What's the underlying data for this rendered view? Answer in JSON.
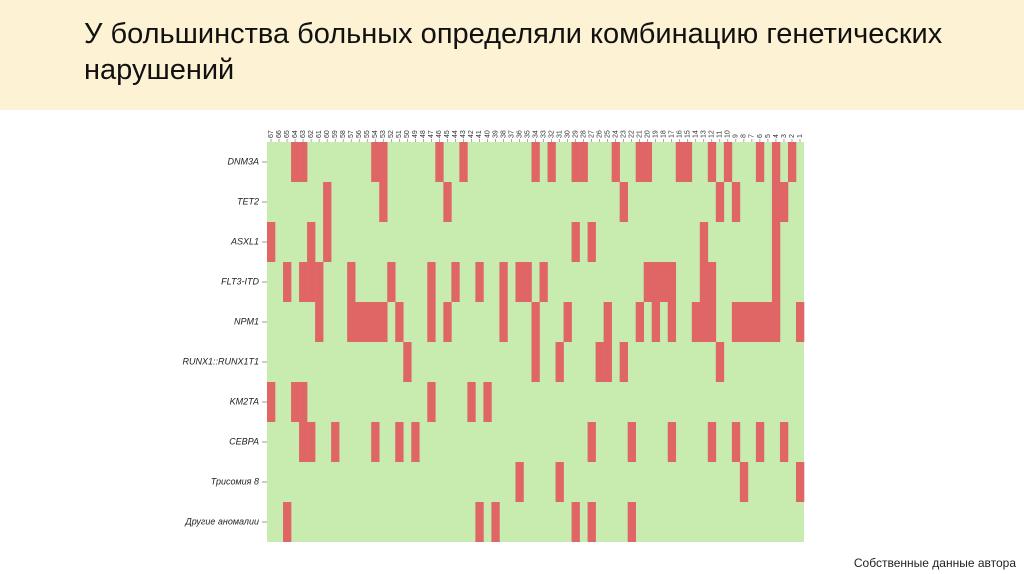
{
  "slide": {
    "title": "У большинства больных определяли комбинацию генетических нарушений",
    "footnote": "Собственные данные автора",
    "header_bg": "#fdf2d4"
  },
  "chart_data": {
    "type": "heatmap",
    "colors": {
      "absent": "#c8ebb0",
      "present": "#e06666"
    },
    "columns": [
      "67",
      "66",
      "65",
      "64",
      "63",
      "62",
      "61",
      "60",
      "59",
      "58",
      "57",
      "56",
      "55",
      "54",
      "53",
      "52",
      "51",
      "50",
      "49",
      "48",
      "47",
      "46",
      "45",
      "44",
      "43",
      "42",
      "41",
      "40",
      "39",
      "38",
      "37",
      "36",
      "35",
      "34",
      "33",
      "32",
      "31",
      "30",
      "29",
      "28",
      "27",
      "26",
      "25",
      "24",
      "23",
      "22",
      "21",
      "20",
      "19",
      "18",
      "17",
      "16",
      "15",
      "14",
      "13",
      "12",
      "11",
      "10",
      "9",
      "8",
      "7",
      "6",
      "5",
      "4",
      "3",
      "2",
      "1"
    ],
    "rows": [
      {
        "label": "DNM3A",
        "present": [
          "64",
          "63",
          "54",
          "53",
          "46",
          "43",
          "34",
          "32",
          "29",
          "28",
          "24",
          "21",
          "20",
          "16",
          "15",
          "12",
          "10",
          "6",
          "4",
          "2"
        ]
      },
      {
        "label": "TET2",
        "present": [
          "60",
          "53",
          "45",
          "23",
          "11",
          "9",
          "4",
          "3"
        ]
      },
      {
        "label": "ASXL1",
        "present": [
          "67",
          "62",
          "60",
          "29",
          "27",
          "13",
          "4"
        ]
      },
      {
        "label": "FLT3-ITD",
        "present": [
          "65",
          "63",
          "62",
          "61",
          "57",
          "52",
          "47",
          "44",
          "41",
          "38",
          "36",
          "35",
          "33",
          "20",
          "19",
          "18",
          "17",
          "13",
          "12",
          "4"
        ]
      },
      {
        "label": "NPM1",
        "present": [
          "61",
          "57",
          "56",
          "55",
          "54",
          "53",
          "51",
          "47",
          "45",
          "38",
          "34",
          "30",
          "25",
          "21",
          "19",
          "17",
          "14",
          "13",
          "12",
          "9",
          "8",
          "7",
          "6",
          "5",
          "4",
          "1"
        ]
      },
      {
        "label": "RUNX1::RUNX1T1",
        "present": [
          "50",
          "34",
          "31",
          "26",
          "25",
          "23",
          "11"
        ]
      },
      {
        "label": "KM2TA",
        "present": [
          "67",
          "64",
          "63",
          "47",
          "42",
          "40"
        ]
      },
      {
        "label": "CEBPA",
        "present": [
          "63",
          "62",
          "59",
          "54",
          "51",
          "49",
          "27",
          "22",
          "17",
          "12",
          "9",
          "6",
          "3"
        ]
      },
      {
        "label": "Трисомия 8",
        "present": [
          "36",
          "31",
          "8",
          "1"
        ]
      },
      {
        "label": "Другие аномалии",
        "present": [
          "65",
          "41",
          "39",
          "29",
          "27",
          "22"
        ]
      }
    ]
  }
}
